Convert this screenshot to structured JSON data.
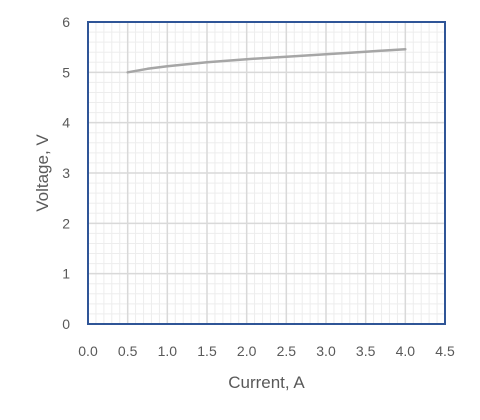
{
  "chart_data": {
    "type": "line",
    "title": "",
    "xlabel": "Current, A",
    "ylabel": "Voltage, V",
    "xlim": [
      0,
      4.5
    ],
    "ylim": [
      0,
      6
    ],
    "x_ticks": [
      "0.0",
      "0.5",
      "1.0",
      "1.5",
      "2.0",
      "2.5",
      "3.0",
      "3.5",
      "4.0",
      "4.5"
    ],
    "y_ticks": [
      "0",
      "1",
      "2",
      "3",
      "4",
      "5",
      "6"
    ],
    "grid": true,
    "legend": "none",
    "series": [
      {
        "color": "#a6a6a6",
        "x": [
          0.5,
          0.75,
          1.0,
          1.5,
          2.0,
          2.5,
          3.0,
          3.5,
          4.0
        ],
        "y": [
          5.0,
          5.07,
          5.12,
          5.2,
          5.26,
          5.31,
          5.36,
          5.41,
          5.46
        ]
      }
    ],
    "colors": {
      "plot_border": "#2f5597",
      "major_grid": "#d9d9d9",
      "minor_grid": "#ededed"
    }
  }
}
